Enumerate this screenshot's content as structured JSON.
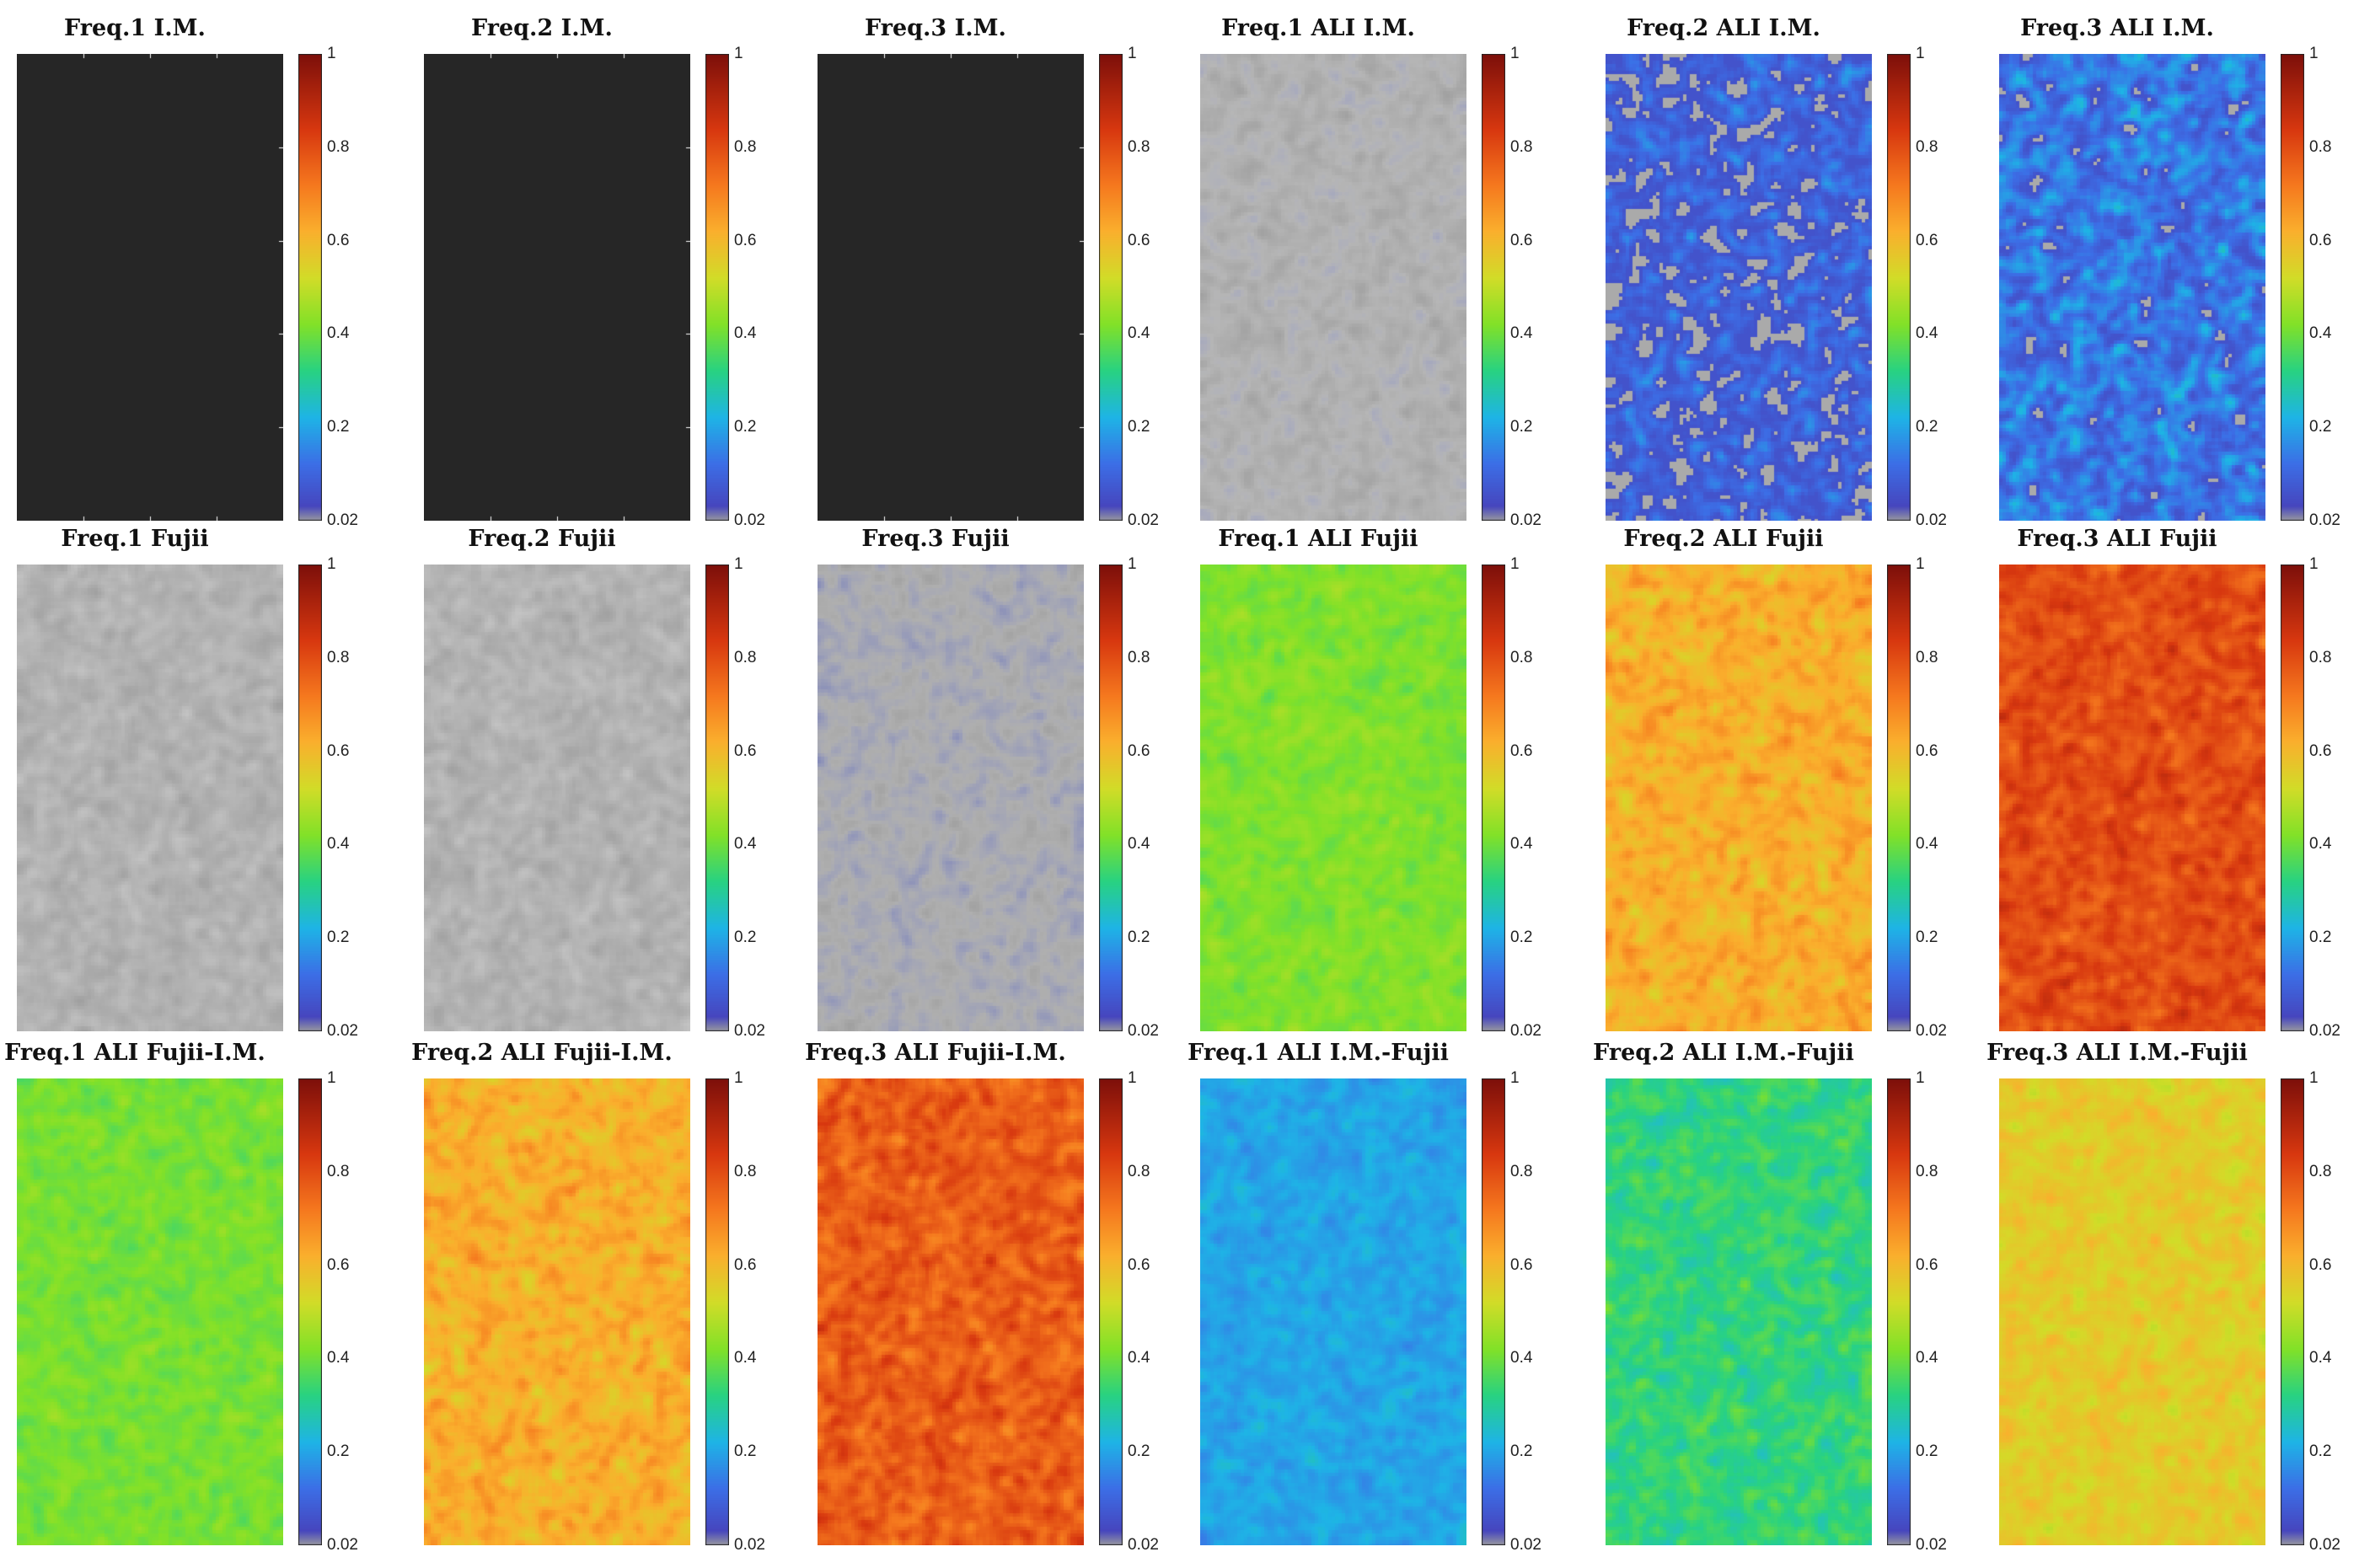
{
  "chart_data": [
    {
      "type": "heatmap",
      "title": "Freq.1 I.M.",
      "mode": "dark",
      "colorbar": {
        "ticks": [
          "0.02",
          "0.2",
          "0.4",
          "0.6",
          "0.8",
          "1"
        ],
        "range": [
          0.02,
          1
        ]
      }
    },
    {
      "type": "heatmap",
      "title": "Freq.2 I.M.",
      "mode": "dark",
      "colorbar": {
        "ticks": [
          "0.02",
          "0.2",
          "0.4",
          "0.6",
          "0.8",
          "1"
        ],
        "range": [
          0.02,
          1
        ]
      }
    },
    {
      "type": "heatmap",
      "title": "Freq.3 I.M.",
      "mode": "dark",
      "colorbar": {
        "ticks": [
          "0.02",
          "0.2",
          "0.4",
          "0.6",
          "0.8",
          "1"
        ],
        "range": [
          0.02,
          1
        ]
      }
    },
    {
      "type": "heatmap",
      "title": "Freq.1 ALI I.M.",
      "mode": "gray",
      "mean": 0.03,
      "spread": 0.05,
      "colorbar": {
        "ticks": [
          "0.02",
          "0.2",
          "0.4",
          "0.6",
          "0.8",
          "1"
        ],
        "range": [
          0.02,
          1
        ]
      }
    },
    {
      "type": "heatmap",
      "title": "Freq.2 ALI I.M.",
      "mode": "blobs",
      "mean": 0.08,
      "spread": 0.12,
      "colorbar": {
        "ticks": [
          "0.02",
          "0.2",
          "0.4",
          "0.6",
          "0.8",
          "1"
        ],
        "range": [
          0.02,
          1
        ]
      }
    },
    {
      "type": "heatmap",
      "title": "Freq.3 ALI I.M.",
      "mode": "blobs",
      "mean": 0.13,
      "spread": 0.14,
      "colorbar": {
        "ticks": [
          "0.02",
          "0.2",
          "0.4",
          "0.6",
          "0.8",
          "1"
        ],
        "range": [
          0.02,
          1
        ]
      }
    },
    {
      "type": "heatmap",
      "title": "Freq.1 Fujii",
      "mode": "gray",
      "mean": 0.02,
      "spread": 0.01,
      "colorbar": {
        "ticks": [
          "0.02",
          "0.2",
          "0.4",
          "0.6",
          "0.8",
          "1"
        ],
        "range": [
          0.02,
          1
        ]
      }
    },
    {
      "type": "heatmap",
      "title": "Freq.2 Fujii",
      "mode": "gray",
      "mean": 0.02,
      "spread": 0.01,
      "colorbar": {
        "ticks": [
          "0.02",
          "0.2",
          "0.4",
          "0.6",
          "0.8",
          "1"
        ],
        "range": [
          0.02,
          1
        ]
      }
    },
    {
      "type": "heatmap",
      "title": "Freq.3 Fujii",
      "mode": "gray",
      "mean": 0.05,
      "spread": 0.06,
      "colorbar": {
        "ticks": [
          "0.02",
          "0.2",
          "0.4",
          "0.6",
          "0.8",
          "1"
        ],
        "range": [
          0.02,
          1
        ]
      }
    },
    {
      "type": "heatmap",
      "title": "Freq.1 ALI Fujii",
      "mode": "color",
      "mean": 0.42,
      "spread": 0.05,
      "colorbar": {
        "ticks": [
          "0.02",
          "0.2",
          "0.4",
          "0.6",
          "0.8",
          "1"
        ],
        "range": [
          0.02,
          1
        ]
      }
    },
    {
      "type": "heatmap",
      "title": "Freq.2 ALI Fujii",
      "mode": "color",
      "mean": 0.62,
      "spread": 0.09,
      "colorbar": {
        "ticks": [
          "0.02",
          "0.2",
          "0.4",
          "0.6",
          "0.8",
          "1"
        ],
        "range": [
          0.02,
          1
        ]
      }
    },
    {
      "type": "heatmap",
      "title": "Freq.3 ALI Fujii",
      "mode": "color",
      "mean": 0.8,
      "spread": 0.09,
      "colorbar": {
        "ticks": [
          "0.02",
          "0.2",
          "0.4",
          "0.6",
          "0.8",
          "1"
        ],
        "range": [
          0.02,
          1
        ]
      }
    },
    {
      "type": "heatmap",
      "title": "Freq.1 ALI Fujii-I.M.",
      "mode": "color",
      "mean": 0.41,
      "spread": 0.05,
      "colorbar": {
        "ticks": [
          "0.02",
          "0.2",
          "0.4",
          "0.6",
          "0.8",
          "1"
        ],
        "range": [
          0.02,
          1
        ]
      }
    },
    {
      "type": "heatmap",
      "title": "Freq.2 ALI Fujii-I.M.",
      "mode": "color",
      "mean": 0.62,
      "spread": 0.09,
      "colorbar": {
        "ticks": [
          "0.02",
          "0.2",
          "0.4",
          "0.6",
          "0.8",
          "1"
        ],
        "range": [
          0.02,
          1
        ]
      }
    },
    {
      "type": "heatmap",
      "title": "Freq.3 ALI Fujii-I.M.",
      "mode": "color",
      "mean": 0.77,
      "spread": 0.1,
      "colorbar": {
        "ticks": [
          "0.02",
          "0.2",
          "0.4",
          "0.6",
          "0.8",
          "1"
        ],
        "range": [
          0.02,
          1
        ]
      }
    },
    {
      "type": "heatmap",
      "title": "Freq.1 ALI I.M.-Fujii",
      "mode": "color",
      "mean": 0.2,
      "spread": 0.05,
      "colorbar": {
        "ticks": [
          "0.02",
          "0.2",
          "0.4",
          "0.6",
          "0.8",
          "1"
        ],
        "range": [
          0.02,
          1
        ]
      }
    },
    {
      "type": "heatmap",
      "title": "Freq.2 ALI I.M.-Fujii",
      "mode": "color",
      "mean": 0.33,
      "spread": 0.08,
      "colorbar": {
        "ticks": [
          "0.02",
          "0.2",
          "0.4",
          "0.6",
          "0.8",
          "1"
        ],
        "range": [
          0.02,
          1
        ]
      }
    },
    {
      "type": "heatmap",
      "title": "Freq.3 ALI I.M.-Fujii",
      "mode": "color",
      "mean": 0.56,
      "spread": 0.07,
      "colorbar": {
        "ticks": [
          "0.02",
          "0.2",
          "0.4",
          "0.6",
          "0.8",
          "1"
        ],
        "range": [
          0.02,
          1
        ]
      }
    }
  ]
}
